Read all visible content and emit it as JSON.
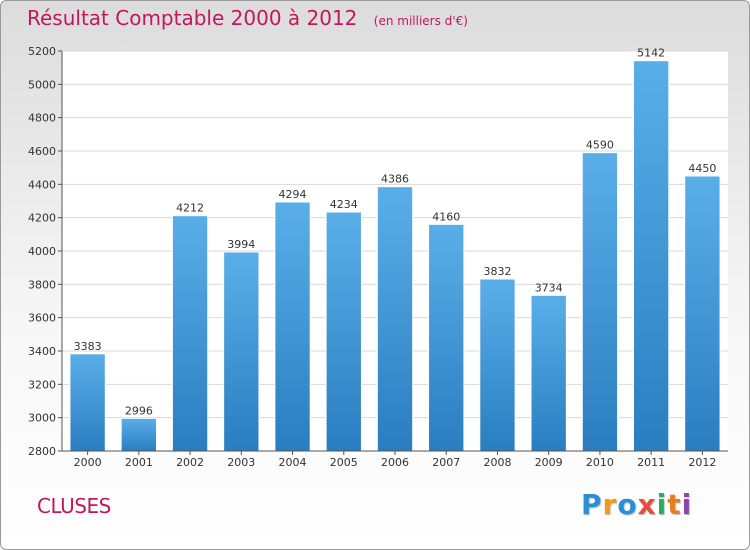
{
  "chart_data": {
    "type": "bar",
    "title": "Résultat Comptable 2000 à 2012",
    "unit_note": "(en milliers d'€)",
    "categories": [
      "2000",
      "2001",
      "2002",
      "2003",
      "2004",
      "2005",
      "2006",
      "2007",
      "2008",
      "2009",
      "2010",
      "2011",
      "2012"
    ],
    "values": [
      3383,
      2996,
      4212,
      3994,
      4294,
      4234,
      4386,
      4160,
      3832,
      3734,
      4590,
      5142,
      4450
    ],
    "ylim": [
      2800,
      5200
    ],
    "yticks": [
      2800,
      3000,
      3200,
      3400,
      3600,
      3800,
      4000,
      4200,
      4400,
      4600,
      4800,
      5000,
      5200
    ],
    "grid": true,
    "bar_color_top": "#5aaee8",
    "bar_color_bottom": "#2a7ec0"
  },
  "location": "CLUSES",
  "logo": {
    "letters": [
      "P",
      "r",
      "o",
      "x",
      "i",
      "t",
      "i"
    ],
    "colors": [
      "#2b8fd6",
      "#f39c12",
      "#2b8fd6",
      "#e74c3c",
      "#27ae60",
      "#e67e22",
      "#8e44ad"
    ]
  }
}
